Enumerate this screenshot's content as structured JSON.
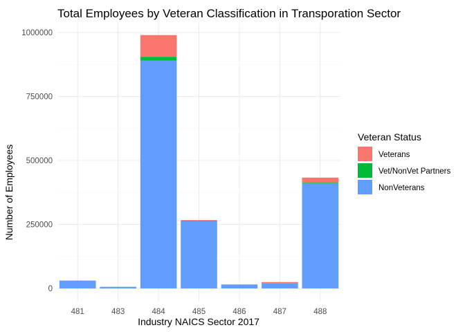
{
  "chart_data": {
    "type": "bar",
    "stacked": true,
    "title": "Total Employees by Veteran Classification in Transporation Sector",
    "xlabel": "Industry NAICS Sector 2017",
    "ylabel": "Number of Employees",
    "categories": [
      "481",
      "483",
      "484",
      "485",
      "486",
      "487",
      "488"
    ],
    "series": [
      {
        "name": "NonVeterans",
        "color": "#619CFF",
        "values": [
          30000,
          6000,
          890000,
          262000,
          15000,
          20000,
          410000
        ]
      },
      {
        "name": "Vet/NonVet Partners",
        "color": "#00BA38",
        "values": [
          500,
          200,
          15000,
          1500,
          200,
          1000,
          3000
        ]
      },
      {
        "name": "Veterans",
        "color": "#F8766D",
        "values": [
          500,
          200,
          85000,
          3500,
          500,
          4000,
          20000
        ]
      }
    ],
    "ylim": [
      0,
      1000000
    ],
    "yticks": [
      0,
      250000,
      500000,
      750000,
      1000000
    ],
    "ytick_labels": [
      "0",
      "250000",
      "500000",
      "750000",
      "1000000"
    ],
    "grid": true,
    "legend": {
      "title": "Veteran Status",
      "position": "right",
      "entries": [
        {
          "label": "Veterans",
          "color": "#F8766D"
        },
        {
          "label": "Vet/NonVet Partners",
          "color": "#00BA38"
        },
        {
          "label": "NonVeterans",
          "color": "#619CFF"
        }
      ]
    }
  }
}
